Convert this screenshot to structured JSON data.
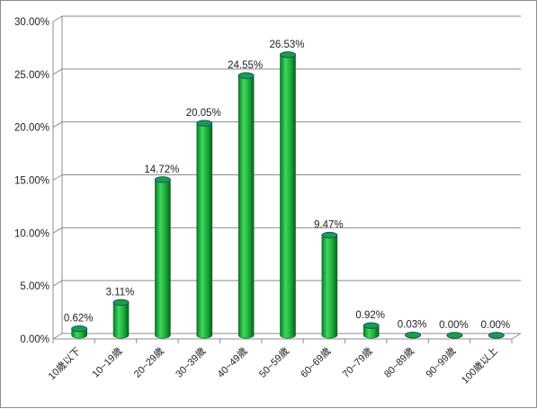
{
  "chart_data": {
    "type": "bar",
    "categories": [
      "10歲以下",
      "10~19歲",
      "20~29歲",
      "30~39歲",
      "40~49歲",
      "50~59歲",
      "60~69歲",
      "70~79歲",
      "80~89歲",
      "90~99歲",
      "100歲以上"
    ],
    "values": [
      0.62,
      3.11,
      14.72,
      20.05,
      24.55,
      26.53,
      9.47,
      0.92,
      0.03,
      0.0,
      0.0
    ],
    "data_labels": [
      "0.62%",
      "3.11%",
      "14.72%",
      "20.05%",
      "24.55%",
      "26.53%",
      "9.47%",
      "0.92%",
      "0.03%",
      "0.00%",
      "0.00%"
    ],
    "y_ticks": [
      0,
      5,
      10,
      15,
      20,
      25,
      30
    ],
    "y_tick_labels": [
      "0.00%",
      "5.00%",
      "10.00%",
      "15.00%",
      "20.00%",
      "25.00%",
      "30.00%"
    ],
    "ylim": [
      0,
      30
    ],
    "title": "",
    "xlabel": "",
    "ylabel": "",
    "grid": true,
    "legend": "none",
    "style": "3d-cylinder",
    "colors": {
      "bar_fill": "#1db53c",
      "bar_dark": "#0d6a20",
      "bar_light": "#4fe06a",
      "bar_top": "#16a33a",
      "bar_top_rim": "#1f4a8f",
      "grid": "#8c8c8c"
    }
  }
}
